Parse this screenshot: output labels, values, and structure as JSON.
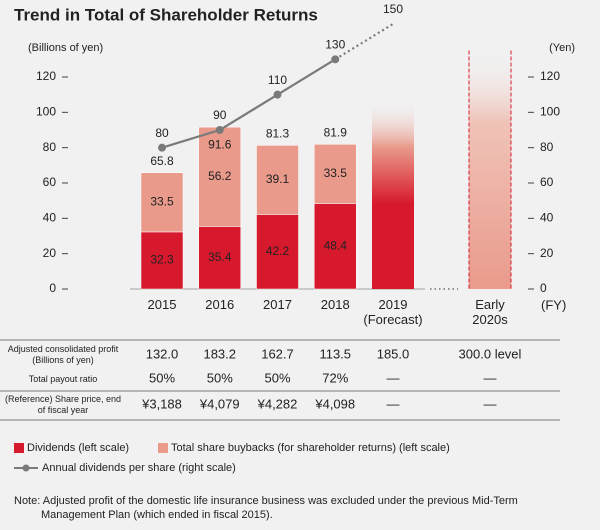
{
  "chart_data": {
    "type": "bar",
    "stacked": true,
    "title": "Trend in Total of Shareholder Returns",
    "y_label": "(Billions of yen)",
    "y2_label": "(Yen)",
    "x_label": "(FY)",
    "categories": [
      "2015",
      "2016",
      "2017",
      "2018",
      "2019 (Forecast)",
      "Early 2020s"
    ],
    "series": [
      {
        "name": "Dividends (left scale)",
        "color": "#d7192d",
        "values": [
          32.3,
          35.4,
          42.2,
          48.4,
          null,
          null
        ]
      },
      {
        "name": "Total share buybacks (for shareholder returns) (left scale)",
        "color": "#e99a8b",
        "values": [
          33.5,
          56.2,
          39.1,
          33.5,
          null,
          null
        ]
      },
      {
        "name": "Annual dividends per share (right scale)",
        "type": "line",
        "axis": "y2",
        "color": "#7a7a7a",
        "values": [
          80,
          90,
          110,
          130,
          150,
          null
        ],
        "projected": [
          false,
          false,
          false,
          false,
          true,
          false
        ]
      }
    ],
    "totals": [
      65.8,
      91.6,
      81.3,
      81.9,
      null,
      null
    ],
    "forecast_bars": {
      "values": [
        null,
        null,
        null,
        null,
        107,
        135
      ],
      "color": "#d7192d",
      "dashed_outline": [
        false,
        false,
        false,
        false,
        false,
        true
      ]
    },
    "ylim": [
      0,
      120
    ],
    "yticks": [
      0,
      20,
      40,
      60,
      80,
      100,
      120
    ],
    "y2lim": [
      0,
      120
    ],
    "y2ticks": [
      0,
      20,
      40,
      60,
      80,
      100,
      120
    ]
  },
  "table": {
    "rows": [
      {
        "label": "Adjusted consolidated profit (Billions of yen)",
        "cells": [
          "132.0",
          "183.2",
          "162.7",
          "113.5",
          "185.0",
          "300.0 level"
        ]
      },
      {
        "label": "Total payout ratio",
        "cells": [
          "50%",
          "50%",
          "50%",
          "72%",
          "—",
          "—"
        ]
      },
      {
        "label": "(Reference) Share price, end of fiscal year",
        "cells": [
          "¥3,188",
          "¥4,079",
          "¥4,282",
          "¥4,098",
          "—",
          "—"
        ]
      }
    ]
  },
  "note": "Note: Adjusted profit of the domestic life insurance business was excluded under the previous Mid-Term Management Plan (which ended in fiscal 2015)."
}
